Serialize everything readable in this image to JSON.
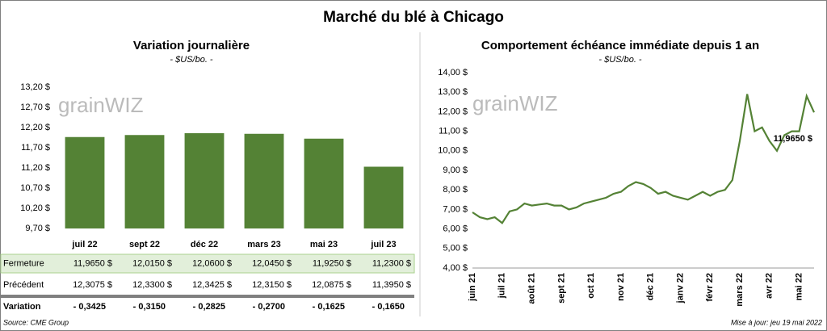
{
  "title": "Marché du blé à Chicago",
  "watermark": "grainWIZ",
  "source": "Source: CME Group",
  "updated": "Mise à jour: jeu 19 mai 2022",
  "chart_data": [
    {
      "type": "bar",
      "title": "Variation journalière",
      "subtitle": "- $US/bo. -",
      "categories": [
        "juil 22",
        "sept 22",
        "déc 22",
        "mars 23",
        "mai 23",
        "juil 23"
      ],
      "values": [
        11.965,
        12.015,
        12.06,
        12.045,
        11.925,
        11.23
      ],
      "value_labels": [
        "11,9650 $",
        "12,0150 $",
        "12,0600 $",
        "12,0450 $",
        "11,9250 $",
        "11,2300 $"
      ],
      "color": "#548235",
      "ylim": [
        9.7,
        13.2
      ],
      "yticks": [
        {
          "value": 9.7,
          "label": "9,70 $"
        },
        {
          "value": 10.2,
          "label": "10,20 $"
        },
        {
          "value": 10.7,
          "label": "10,70 $"
        },
        {
          "value": 11.2,
          "label": "11,20 $"
        },
        {
          "value": 11.7,
          "label": "11,70 $"
        },
        {
          "value": 12.2,
          "label": "12,20 $"
        },
        {
          "value": 12.7,
          "label": "12,70 $"
        },
        {
          "value": 13.2,
          "label": "13,20 $"
        }
      ],
      "grid": false,
      "row_labels": [
        "Fermeture",
        "Précédent",
        "Variation"
      ],
      "previous": [
        "12,3075 $",
        "12,3300 $",
        "12,3425 $",
        "12,3150 $",
        "12,0875 $",
        "11,3950 $"
      ],
      "variation": [
        "- 0,3425",
        "- 0,3150",
        "- 0,2825",
        "- 0,2700",
        "- 0,1625",
        "- 0,1650"
      ]
    },
    {
      "type": "line",
      "title": "Comportement échéance immédiate depuis 1 an",
      "subtitle": "- $US/bo. -",
      "categories": [
        "juin 21",
        null,
        null,
        null,
        "juil 21",
        null,
        null,
        null,
        "août 21",
        null,
        null,
        null,
        "sept 21",
        null,
        null,
        null,
        "oct 21",
        null,
        null,
        null,
        "nov 21",
        null,
        null,
        null,
        "déc 21",
        null,
        null,
        null,
        "janv 22",
        null,
        null,
        null,
        "févr 22",
        null,
        null,
        null,
        "mars 22",
        null,
        null,
        null,
        "avr 22",
        null,
        null,
        null,
        "mai 22",
        null,
        null
      ],
      "values": [
        6.85,
        6.6,
        6.5,
        6.6,
        6.3,
        6.9,
        7.0,
        7.3,
        7.2,
        7.25,
        7.3,
        7.2,
        7.2,
        7.0,
        7.1,
        7.3,
        7.4,
        7.5,
        7.6,
        7.8,
        7.9,
        8.2,
        8.4,
        8.3,
        8.1,
        7.8,
        7.9,
        7.7,
        7.6,
        7.5,
        7.7,
        7.9,
        7.7,
        7.9,
        8.0,
        8.5,
        10.5,
        12.9,
        11.0,
        11.2,
        10.5,
        10.0,
        10.8,
        11.0,
        11.0,
        12.8,
        11.965
      ],
      "color": "#548235",
      "ylim": [
        4,
        14
      ],
      "yticks": [
        {
          "value": 4,
          "label": "4,00 $"
        },
        {
          "value": 5,
          "label": "5,00 $"
        },
        {
          "value": 6,
          "label": "6,00 $"
        },
        {
          "value": 7,
          "label": "7,00 $"
        },
        {
          "value": 8,
          "label": "8,00 $"
        },
        {
          "value": 9,
          "label": "9,00 $"
        },
        {
          "value": 10,
          "label": "10,00 $"
        },
        {
          "value": 11,
          "label": "11,00 $"
        },
        {
          "value": 12,
          "label": "12,00 $"
        },
        {
          "value": 13,
          "label": "13,00 $"
        },
        {
          "value": 14,
          "label": "14,00 $"
        }
      ],
      "grid": false,
      "annotation": "11,9650 $"
    }
  ]
}
